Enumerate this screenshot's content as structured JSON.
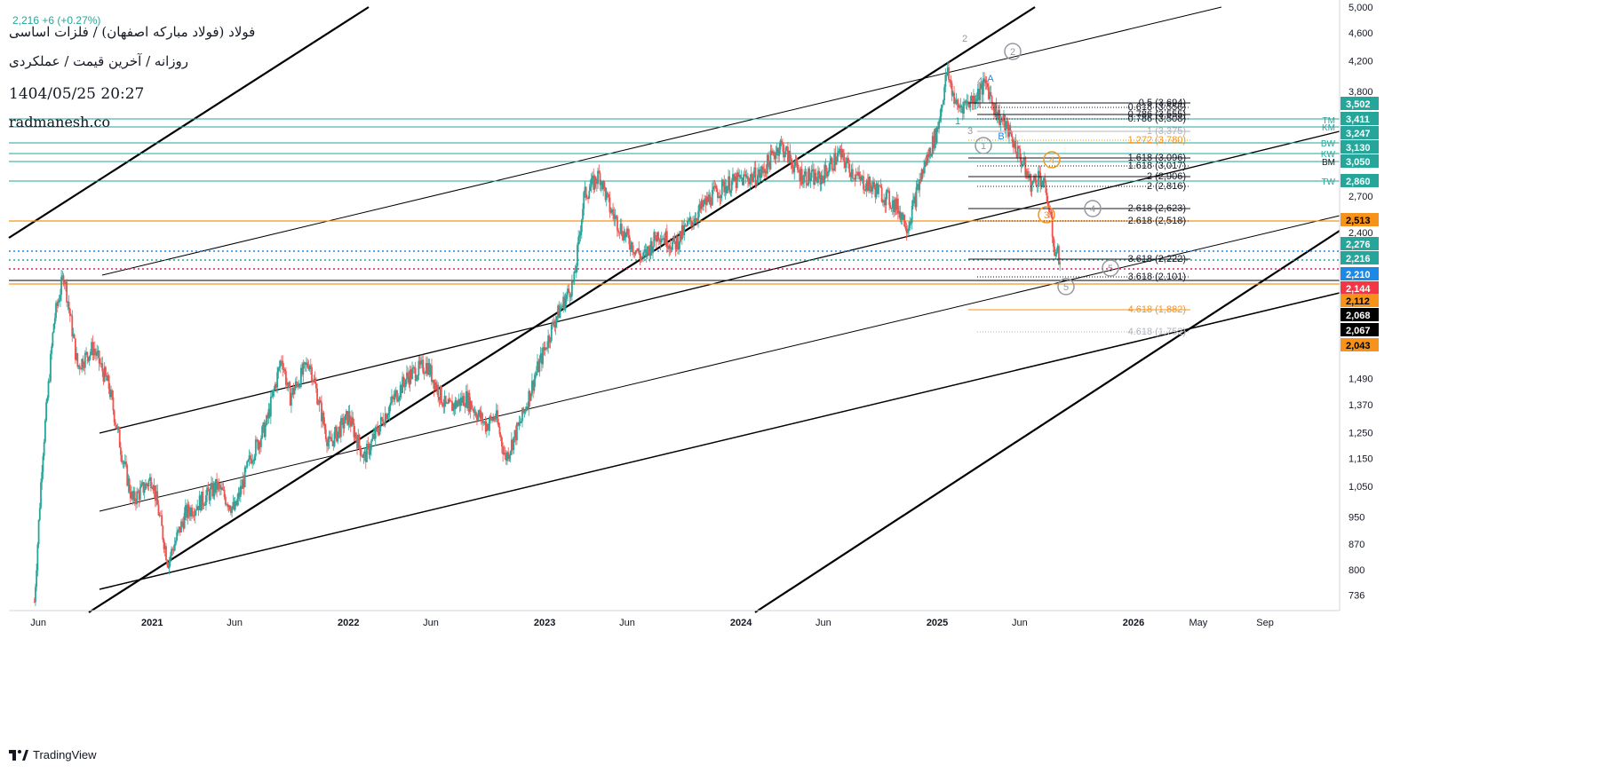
{
  "header": {
    "symbol_title": "فولاد (فولاد مبارکه اصفهان) / فلزات اساسی",
    "subtitle": "روزانه / آخرین قیمت / عملکردی",
    "datetime": "1404/05/25 20:27",
    "site": "radmanesh.co",
    "ohlc_change": "2,216 +6 (+0.27%)"
  },
  "footer": {
    "brand": "TradingView"
  },
  "colors": {
    "up": "#26a69a",
    "down": "#ef5350",
    "orange": "#f7931a",
    "black": "#000000",
    "teal_line": "#26a69a",
    "red_dot": "#e91e63",
    "blue_dot": "#1e88e5"
  },
  "chart_data": {
    "type": "candlestick",
    "scale": "log",
    "ylim": [
      700,
      5000
    ],
    "y_ticks": [
      736,
      800,
      870,
      950,
      1050,
      1150,
      1250,
      1370,
      1490,
      2400,
      2700,
      3800,
      4200,
      4600,
      5000
    ],
    "x_ticks": [
      "Jun",
      "2021",
      "Jun",
      "2022",
      "Jun",
      "2023",
      "Jun",
      "2024",
      "Jun",
      "2025",
      "Jun",
      "2026",
      "May",
      "Sep"
    ],
    "x_tick_years": [
      2020.42,
      2021.0,
      2021.42,
      2022.0,
      2022.42,
      2023.0,
      2023.42,
      2024.0,
      2024.42,
      2025.0,
      2025.42,
      2026.0,
      2026.33,
      2026.67
    ],
    "price_path": [
      [
        2020.4,
        720
      ],
      [
        2020.44,
        1150
      ],
      [
        2020.5,
        1800
      ],
      [
        2020.55,
        2100
      ],
      [
        2020.62,
        1550
      ],
      [
        2020.7,
        1650
      ],
      [
        2020.78,
        1450
      ],
      [
        2020.85,
        1150
      ],
      [
        2020.9,
        1000
      ],
      [
        2021.0,
        1080
      ],
      [
        2021.08,
        820
      ],
      [
        2021.17,
        960
      ],
      [
        2021.25,
        1000
      ],
      [
        2021.33,
        1050
      ],
      [
        2021.42,
        970
      ],
      [
        2021.5,
        1150
      ],
      [
        2021.58,
        1280
      ],
      [
        2021.66,
        1600
      ],
      [
        2021.7,
        1400
      ],
      [
        2021.8,
        1580
      ],
      [
        2021.9,
        1200
      ],
      [
        2022.0,
        1320
      ],
      [
        2022.08,
        1150
      ],
      [
        2022.2,
        1350
      ],
      [
        2022.3,
        1500
      ],
      [
        2022.4,
        1560
      ],
      [
        2022.5,
        1350
      ],
      [
        2022.6,
        1400
      ],
      [
        2022.7,
        1280
      ],
      [
        2022.75,
        1320
      ],
      [
        2022.8,
        1150
      ],
      [
        2022.88,
        1300
      ],
      [
        2022.95,
        1500
      ],
      [
        2023.05,
        1800
      ],
      [
        2023.15,
        2050
      ],
      [
        2023.2,
        2700
      ],
      [
        2023.28,
        2900
      ],
      [
        2023.33,
        2600
      ],
      [
        2023.4,
        2400
      ],
      [
        2023.5,
        2200
      ],
      [
        2023.58,
        2400
      ],
      [
        2023.66,
        2300
      ],
      [
        2023.75,
        2500
      ],
      [
        2023.85,
        2700
      ],
      [
        2023.92,
        2800
      ],
      [
        2024.0,
        2850
      ],
      [
        2024.1,
        2900
      ],
      [
        2024.2,
        3200
      ],
      [
        2024.3,
        2900
      ],
      [
        2024.4,
        2850
      ],
      [
        2024.5,
        3100
      ],
      [
        2024.6,
        2850
      ],
      [
        2024.7,
        2750
      ],
      [
        2024.8,
        2600
      ],
      [
        2024.85,
        2450
      ],
      [
        2024.92,
        2900
      ],
      [
        2025.0,
        3350
      ],
      [
        2025.05,
        4050
      ],
      [
        2025.1,
        3600
      ],
      [
        2025.18,
        3700
      ],
      [
        2025.25,
        3900
      ],
      [
        2025.3,
        3550
      ],
      [
        2025.36,
        3350
      ],
      [
        2025.42,
        3080
      ],
      [
        2025.48,
        2800
      ],
      [
        2025.52,
        2900
      ],
      [
        2025.56,
        2700
      ],
      [
        2025.6,
        2250
      ],
      [
        2025.63,
        2216
      ]
    ],
    "price_axis_labels": [
      {
        "value": "3,502",
        "bg": "#26a69a",
        "fg": "#ffffff"
      },
      {
        "value": "3,411",
        "bg": "#26a69a",
        "fg": "#ffffff"
      },
      {
        "value": "3,247",
        "bg": "#26a69a",
        "fg": "#ffffff"
      },
      {
        "value": "3,130",
        "bg": "#26a69a",
        "fg": "#ffffff"
      },
      {
        "value": "3,050",
        "bg": "#26a69a",
        "fg": "#ffffff"
      },
      {
        "value": "2,860",
        "bg": "#26a69a",
        "fg": "#ffffff"
      },
      {
        "value": "2,513",
        "bg": "#f7931a",
        "fg": "#000000"
      },
      {
        "value": "2,276",
        "bg": "#26a69a",
        "fg": "#ffffff"
      },
      {
        "value": "2,216",
        "bg": "#26a69a",
        "fg": "#ffffff"
      },
      {
        "value": "2,210",
        "bg": "#1e88e5",
        "fg": "#ffffff"
      },
      {
        "value": "2,144",
        "bg": "#f23645",
        "fg": "#ffffff"
      },
      {
        "value": "2,112",
        "bg": "#f7931a",
        "fg": "#000000"
      },
      {
        "value": "2,068",
        "bg": "#000000",
        "fg": "#ffffff"
      },
      {
        "value": "2,067",
        "bg": "#000000",
        "fg": "#ffffff"
      },
      {
        "value": "2,043",
        "bg": "#f7931a",
        "fg": "#000000"
      }
    ],
    "horizontal_levels": [
      {
        "tag": "TM",
        "value": 3411,
        "color": "#26a69a"
      },
      {
        "tag": "KM",
        "value": 3247,
        "color": "#26a69a"
      },
      {
        "tag": "BW",
        "value": 3130,
        "color": "#26a69a"
      },
      {
        "tag": "KW",
        "value": 3050,
        "color": "#26a69a"
      },
      {
        "tag": "BM",
        "value": 3000,
        "color": "#26a69a"
      },
      {
        "tag": "TW",
        "value": 2860,
        "color": "#26a69a"
      }
    ],
    "fib_labels": [
      {
        "text": "0.5 (3,694)",
        "color": "#131722"
      },
      {
        "text": "0.618 (3,556)",
        "color": "#131722"
      },
      {
        "text": "0.786 (3,555)",
        "color": "#131722"
      },
      {
        "text": "0.786 (3,508)",
        "color": "#131722"
      },
      {
        "text": "1 (3,375)",
        "color": "#b2b5be"
      },
      {
        "text": "1.272 (3,780)",
        "color": "#f7931a"
      },
      {
        "text": "1.618 (3,096)",
        "color": "#131722"
      },
      {
        "text": "1.618 (3,017)",
        "color": "#131722"
      },
      {
        "text": "2 (2,906)",
        "color": "#131722"
      },
      {
        "text": "2 (2,816)",
        "color": "#131722"
      },
      {
        "text": "2.618 (2,623)",
        "color": "#131722"
      },
      {
        "text": "2.618 (2,518)",
        "color": "#131722"
      },
      {
        "text": "3.618 (2,222)",
        "color": "#131722"
      },
      {
        "text": "3.618 (2,101)",
        "color": "#131722"
      },
      {
        "text": "4.618 (1,882)",
        "color": "#f7931a"
      },
      {
        "text": "4.618 (1,752)",
        "color": "#b2b5be"
      }
    ],
    "wave_labels": [
      "2",
      "2",
      "A",
      "4",
      "B",
      "3",
      "1",
      "1",
      "4",
      "3",
      "4",
      "5",
      "5"
    ]
  }
}
